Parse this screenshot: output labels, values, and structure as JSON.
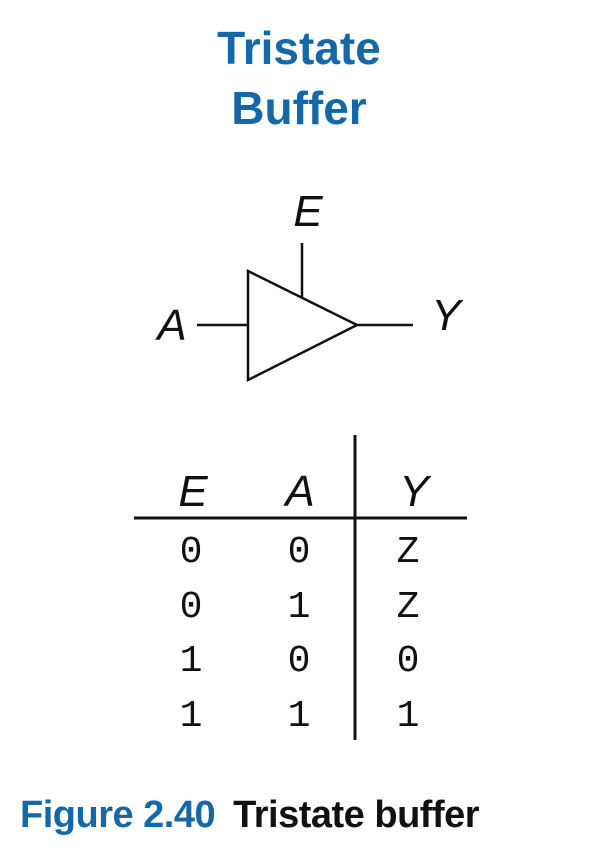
{
  "title": {
    "line1": "Tristate",
    "line2": "Buffer"
  },
  "symbol": {
    "enable_label": "E",
    "input_label": "A",
    "output_label": "Y"
  },
  "truth_table": {
    "headers": [
      "E",
      "A",
      "Y"
    ],
    "rows": [
      [
        "0",
        "0",
        "Z"
      ],
      [
        "0",
        "1",
        "Z"
      ],
      [
        "1",
        "0",
        "0"
      ],
      [
        "1",
        "1",
        "1"
      ]
    ]
  },
  "caption": {
    "number": "Figure 2.40",
    "text": "Tristate buffer"
  },
  "colors": {
    "accent": "#1468a8",
    "ink": "#111111"
  }
}
